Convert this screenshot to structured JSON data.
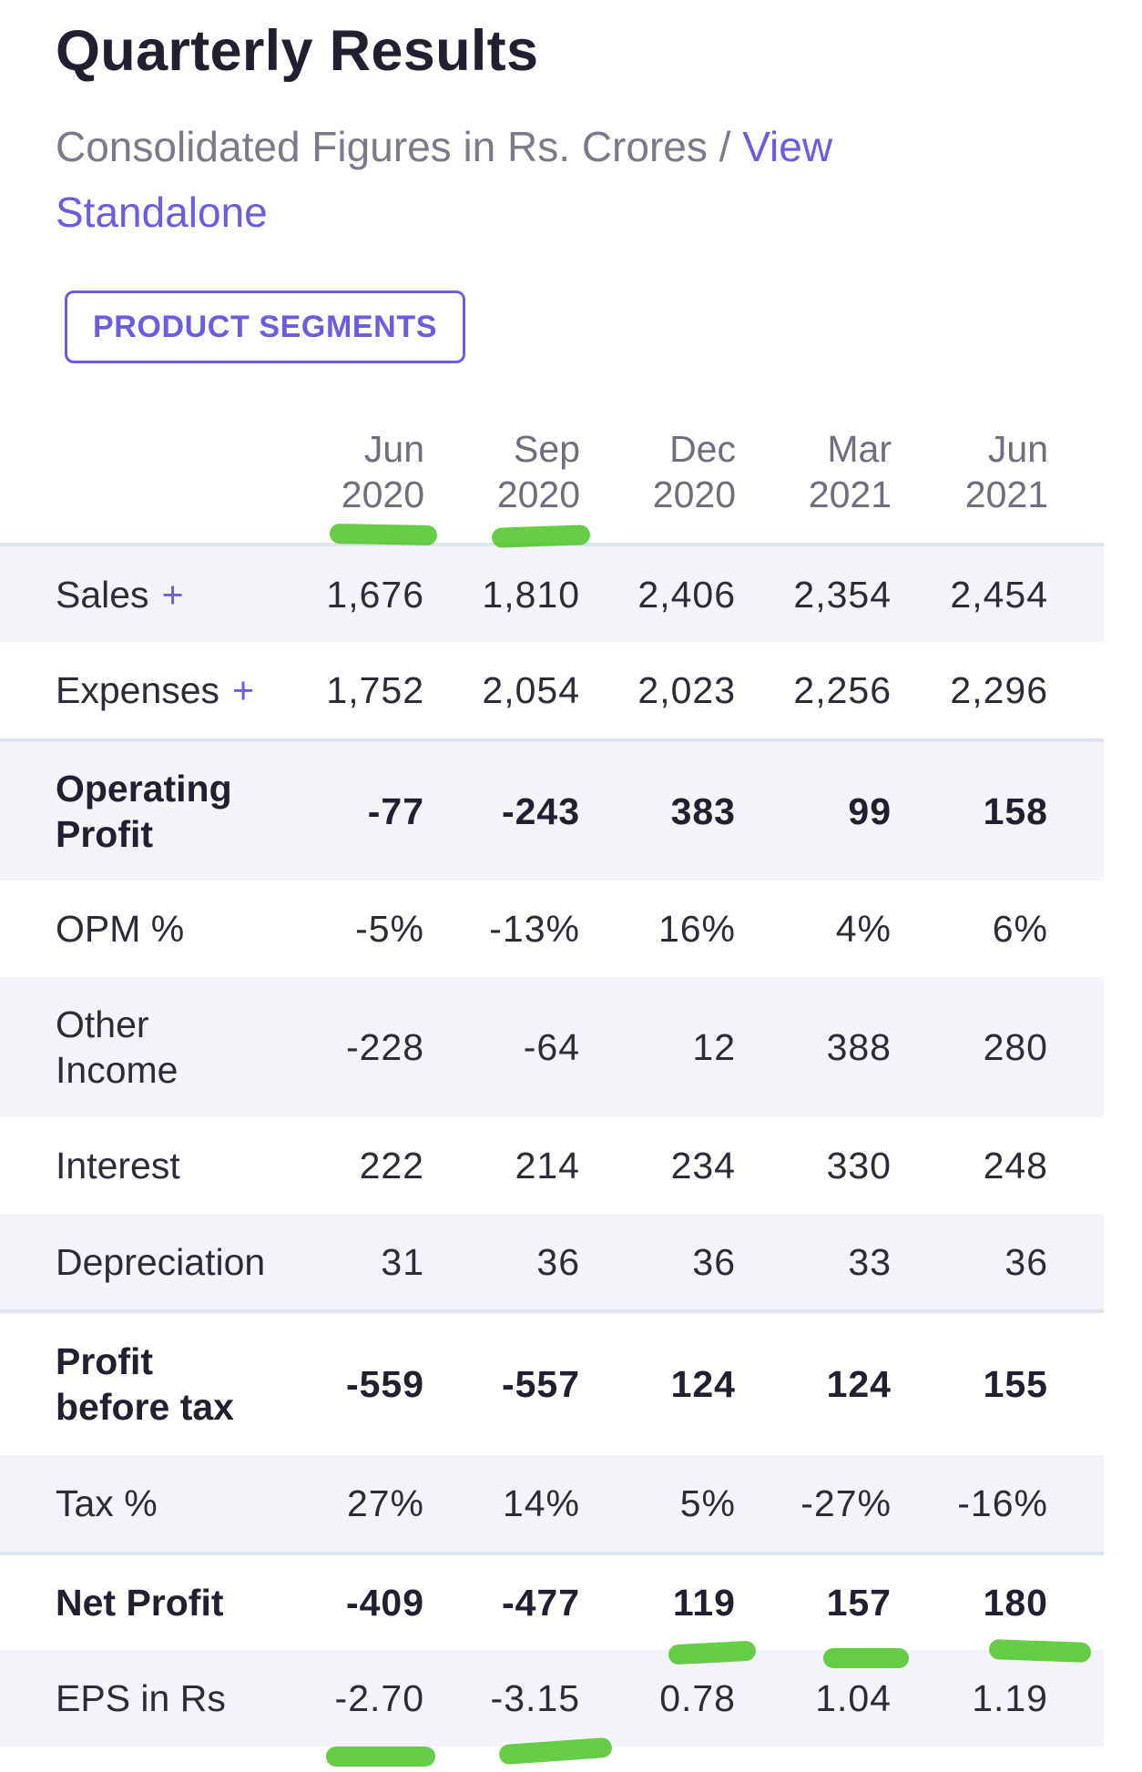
{
  "header": {
    "title": "Quarterly Results",
    "subtitle_prefix": "Consolidated Figures in Rs. Crores / ",
    "view_link": "View Standalone"
  },
  "segments_button": {
    "label": "PRODUCT SEGMENTS"
  },
  "table": {
    "columns": [
      {
        "month": "Jun",
        "year": "2020"
      },
      {
        "month": "Sep",
        "year": "2020"
      },
      {
        "month": "Dec",
        "year": "2020"
      },
      {
        "month": "Mar",
        "year": "2021"
      },
      {
        "month": "Jun",
        "year": "2021"
      }
    ],
    "rows": [
      {
        "label": "Sales",
        "expandable": "+",
        "values": [
          "1,676",
          "1,810",
          "2,406",
          "2,354",
          "2,454"
        ]
      },
      {
        "label": "Expenses",
        "expandable": "+",
        "values": [
          "1,752",
          "2,054",
          "2,023",
          "2,256",
          "2,296"
        ]
      },
      {
        "label": "Operating Profit",
        "values": [
          "-77",
          "-243",
          "383",
          "99",
          "158"
        ]
      },
      {
        "label": "OPM %",
        "values": [
          "-5%",
          "-13%",
          "16%",
          "4%",
          "6%"
        ]
      },
      {
        "label": "Other Income",
        "values": [
          "-228",
          "-64",
          "12",
          "388",
          "280"
        ]
      },
      {
        "label": "Interest",
        "values": [
          "222",
          "214",
          "234",
          "330",
          "248"
        ]
      },
      {
        "label": "Depreciation",
        "values": [
          "31",
          "36",
          "36",
          "33",
          "36"
        ]
      },
      {
        "label": "Profit before tax",
        "values": [
          "-559",
          "-557",
          "124",
          "124",
          "155"
        ]
      },
      {
        "label": "Tax %",
        "values": [
          "27%",
          "14%",
          "5%",
          "-27%",
          "-16%"
        ]
      },
      {
        "label": "Net Profit",
        "values": [
          "-409",
          "-477",
          "119",
          "157",
          "180"
        ]
      },
      {
        "label": "EPS in Rs",
        "values": [
          "-2.70",
          "-3.15",
          "0.78",
          "1.04",
          "1.19"
        ]
      }
    ]
  },
  "colors": {
    "accent": "#6a5de0",
    "row_shade": "#f3f4fa",
    "highlight_marker": "#55c832"
  }
}
